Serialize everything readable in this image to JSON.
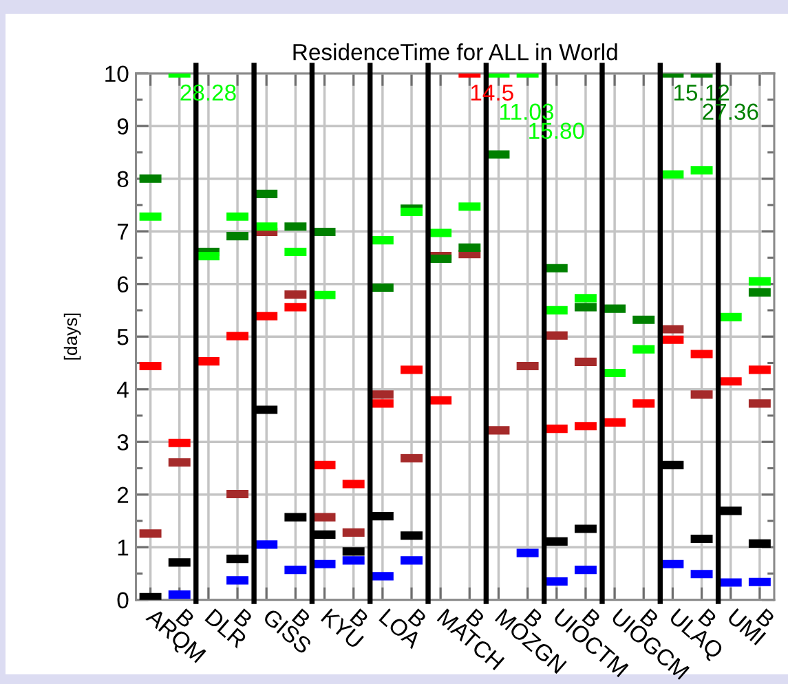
{
  "chart_data": {
    "type": "scatter",
    "title": "ResidenceTime for ALL in World",
    "ylabel": "[days]",
    "categories": [
      "ARQM",
      "B",
      "DLR",
      "B",
      "GISS",
      "B",
      "KYU",
      "B",
      "LOA",
      "B",
      "MATCH",
      "B",
      "MOZGN",
      "B",
      "UIOCTM",
      "B",
      "UIOGCM",
      "B",
      "ULAQ",
      "B",
      "UMI",
      "B"
    ],
    "ylim": [
      0,
      10
    ],
    "yticks": [
      0,
      {
        "value": 0.5,
        "label": null
      },
      1,
      {
        "value": 1.5,
        "label": null
      },
      2,
      {
        "value": 2.5,
        "label": null
      },
      3,
      {
        "value": 3.5,
        "label": null
      },
      4,
      {
        "value": 4.5,
        "label": null
      },
      5,
      {
        "value": 5.5,
        "label": null
      },
      6,
      {
        "value": 6.5,
        "label": null
      },
      7,
      {
        "value": 7.5,
        "label": null
      },
      8,
      {
        "value": 8.5,
        "label": null
      },
      9,
      {
        "value": 9.5,
        "label": null
      },
      10
    ],
    "grid": true,
    "series": [
      {
        "color": "#a52a2a",
        "values": [
          1.26,
          2.61,
          null,
          2.01,
          6.99,
          5.8,
          1.57,
          1.28,
          3.9,
          2.69,
          6.53,
          6.57,
          3.22,
          4.44,
          5.02,
          4.52,
          null,
          null,
          5.14,
          3.9,
          null,
          3.73
        ]
      },
      {
        "color": "#ff0000",
        "values": [
          4.44,
          2.98,
          4.53,
          5.01,
          5.39,
          5.56,
          2.56,
          2.2,
          3.73,
          4.37,
          3.79,
          10,
          null,
          null,
          3.25,
          3.3,
          3.37,
          3.73,
          4.94,
          4.67,
          4.15,
          4.37
        ]
      },
      {
        "color": "#008000",
        "values": [
          8.0,
          null,
          6.61,
          6.91,
          7.71,
          7.09,
          6.99,
          null,
          5.93,
          7.43,
          6.48,
          6.69,
          8.46,
          null,
          6.3,
          5.56,
          5.53,
          5.32,
          10,
          10,
          null,
          5.84
        ]
      },
      {
        "color": "#00ff00",
        "values": [
          7.28,
          10,
          6.53,
          7.28,
          7.09,
          6.61,
          5.79,
          null,
          6.83,
          7.37,
          6.97,
          7.47,
          10,
          10,
          5.5,
          5.73,
          4.31,
          4.76,
          8.08,
          8.16,
          5.37,
          6.05
        ]
      },
      {
        "color": "#000000",
        "values": [
          0.05,
          0.71,
          null,
          0.78,
          3.61,
          1.57,
          1.24,
          0.92,
          1.59,
          1.22,
          null,
          null,
          null,
          null,
          1.11,
          1.35,
          null,
          null,
          2.56,
          1.16,
          1.69,
          1.07
        ]
      },
      {
        "color": "#0000ff",
        "values": [
          null,
          0.1,
          null,
          0.37,
          1.05,
          0.57,
          0.68,
          0.75,
          0.45,
          0.75,
          null,
          null,
          null,
          0.89,
          0.35,
          0.57,
          null,
          null,
          0.68,
          0.49,
          0.33,
          0.34
        ]
      }
    ],
    "annotations": [
      "28.28",
      "14.5",
      "11.03",
      "15.80",
      "15.12",
      "27.36"
    ]
  }
}
